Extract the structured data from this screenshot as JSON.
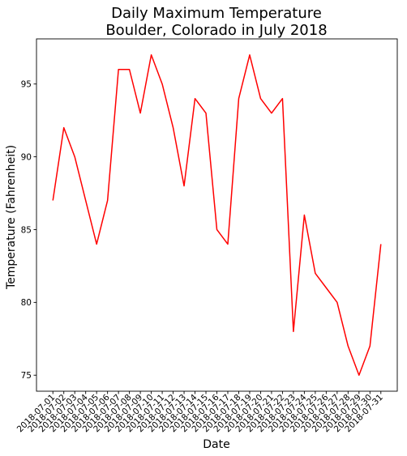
{
  "chart_data": {
    "type": "line",
    "title_line1": "Daily Maximum Temperature",
    "title_line2": "Boulder, Colorado in July 2018",
    "xlabel": "Date",
    "ylabel": "Temperature (Fahrenheit)",
    "x": [
      "2018-07-01",
      "2018-07-02",
      "2018-07-03",
      "2018-07-04",
      "2018-07-05",
      "2018-07-06",
      "2018-07-07",
      "2018-07-08",
      "2018-07-09",
      "2018-07-10",
      "2018-07-11",
      "2018-07-12",
      "2018-07-13",
      "2018-07-14",
      "2018-07-15",
      "2018-07-16",
      "2018-07-17",
      "2018-07-18",
      "2018-07-19",
      "2018-07-20",
      "2018-07-21",
      "2018-07-22",
      "2018-07-23",
      "2018-07-24",
      "2018-07-25",
      "2018-07-26",
      "2018-07-27",
      "2018-07-28",
      "2018-07-29",
      "2018-07-30",
      "2018-07-31"
    ],
    "series": [
      {
        "color": "#ff0000",
        "values": [
          87,
          92,
          90,
          87,
          84,
          87,
          96,
          96,
          93,
          97,
          95,
          92,
          88,
          94,
          93,
          85,
          84,
          94,
          97,
          94,
          93,
          94,
          78,
          86,
          82,
          81,
          80,
          77,
          75,
          77,
          84
        ]
      }
    ],
    "ylim": [
      73.9,
      98.1
    ],
    "yticks": [
      75,
      80,
      85,
      90,
      95
    ],
    "grid": false
  }
}
